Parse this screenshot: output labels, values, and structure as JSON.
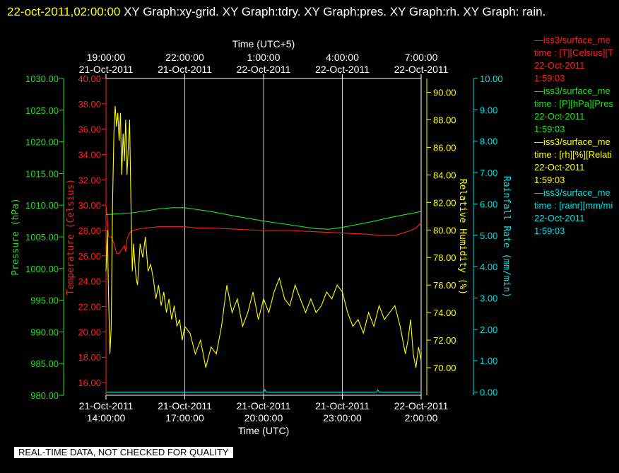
{
  "header": {
    "timestamp": "22-oct-2011,02:00:00",
    "title_rest": " XY Graph:xy-grid.  XY Graph:tdry.  XY Graph:pres.  XY Graph:rh.  XY Graph: rain."
  },
  "qc_banner": "REAL-TIME DATA, NOT CHECKED FOR QUALITY",
  "legend": [
    {
      "lines": [
        "—iss3/surface_me",
        "time : [T][Celsius][T",
        "22-Oct-2011",
        "1:59:03"
      ],
      "color": "#ff2020"
    },
    {
      "lines": [
        "—iss3/surface_me",
        "time : [P][hPa][Pres",
        "22-Oct-2011",
        "1:59:03"
      ],
      "color": "#20e020"
    },
    {
      "lines": [
        "—iss3/surface_me",
        "time : [rh][%][Relati",
        "22-Oct-2011",
        "1:59:03"
      ],
      "color": "#ffff00"
    },
    {
      "lines": [
        "—iss3/surface_me",
        "time : [rainr][mm/mi",
        "22-Oct-2011",
        "1:59:03"
      ],
      "color": "#00e0e0"
    }
  ],
  "chart_data": {
    "type": "line",
    "x_axis_bottom": {
      "label": "Time (UTC)",
      "ticks": [
        {
          "date": "21-Oct-2011",
          "time": "14:00:00",
          "hours": 0
        },
        {
          "date": "21-Oct-2011",
          "time": "17:00:00",
          "hours": 3
        },
        {
          "date": "21-Oct-2011",
          "time": "20:00:00",
          "hours": 6
        },
        {
          "date": "21-Oct-2011",
          "time": "23:00:00",
          "hours": 9
        },
        {
          "date": "22-Oct-2011",
          "time": "2:00:00",
          "hours": 12
        }
      ],
      "range_hours": [
        0,
        12
      ]
    },
    "x_axis_top": {
      "label": "Time (UTC+5)",
      "ticks": [
        {
          "time": "19:00:00",
          "date": "21-Oct-2011"
        },
        {
          "time": "22:00:00",
          "date": "21-Oct-2011"
        },
        {
          "time": "1:00:00",
          "date": "22-Oct-2011"
        },
        {
          "time": "4:00:00",
          "date": "22-Oct-2011"
        },
        {
          "time": "7:00:00",
          "date": "22-Oct-2011"
        }
      ]
    },
    "axes": {
      "pressure": {
        "label": "Pressure (hPa)",
        "color": "#20e020",
        "range": [
          980,
          1030
        ],
        "ticks": [
          "980.00",
          "985.00",
          "990.00",
          "995.00",
          "1000.00",
          "1005.00",
          "1010.00",
          "1015.00",
          "1020.00",
          "1025.00",
          "1030.00"
        ]
      },
      "temperature": {
        "label": "Temperature (Celsius)",
        "color": "#ff2020",
        "range": [
          15,
          40
        ],
        "ticks": [
          "16.00",
          "18.00",
          "20.00",
          "22.00",
          "24.00",
          "26.00",
          "28.00",
          "30.00",
          "32.00",
          "34.00",
          "36.00",
          "38.00",
          "40.00"
        ]
      },
      "rh": {
        "label": "Relative Humidity (%)",
        "color": "#ffff00",
        "range": [
          68,
          91
        ],
        "ticks": [
          "70.00",
          "72.00",
          "74.00",
          "76.00",
          "78.00",
          "80.00",
          "82.00",
          "84.00",
          "86.00",
          "88.00",
          "90.00"
        ]
      },
      "rain": {
        "label": "Rainfall Rate (mm/min)",
        "color": "#00e0e0",
        "range": [
          -0.1,
          10
        ],
        "ticks": [
          "0.00",
          "1.00",
          "2.00",
          "3.00",
          "4.00",
          "5.00",
          "6.00",
          "7.00",
          "8.00",
          "9.00",
          "10.00"
        ]
      }
    },
    "grid": "vertical",
    "series": [
      {
        "key": "temperature",
        "color": "#ff2020",
        "x": [
          0,
          0.05,
          0.1,
          0.2,
          0.3,
          0.4,
          0.5,
          0.6,
          0.7,
          0.75,
          0.8,
          0.9,
          1.0,
          1.2,
          1.5,
          2.0,
          2.5,
          3.0,
          3.5,
          4.0,
          5.0,
          6.0,
          7.0,
          8.0,
          9.0,
          10.0,
          10.5,
          11.0,
          11.3,
          11.6,
          11.8,
          12.0
        ],
        "y": [
          30.0,
          29.0,
          27.5,
          27.5,
          27.0,
          26.2,
          26.2,
          26.5,
          26.8,
          26.3,
          27.3,
          27.8,
          28.0,
          28.1,
          28.2,
          28.3,
          28.3,
          28.3,
          28.2,
          28.2,
          28.1,
          28.0,
          28.0,
          27.9,
          27.8,
          27.7,
          27.6,
          27.6,
          27.8,
          28.0,
          28.2,
          28.6
        ]
      },
      {
        "key": "pressure",
        "color": "#20e020",
        "x": [
          0,
          1,
          2,
          2.5,
          3,
          4,
          5,
          6,
          7,
          8,
          8.5,
          9,
          10,
          11,
          12
        ],
        "y": [
          1008.5,
          1008.8,
          1009.4,
          1009.6,
          1009.6,
          1009.0,
          1008.2,
          1007.5,
          1006.9,
          1006.3,
          1006.2,
          1006.5,
          1007.3,
          1008.2,
          1009.0
        ]
      },
      {
        "key": "rh",
        "color": "#ffff00",
        "x": [
          0,
          0.05,
          0.1,
          0.15,
          0.2,
          0.25,
          0.3,
          0.35,
          0.4,
          0.45,
          0.5,
          0.55,
          0.6,
          0.65,
          0.7,
          0.75,
          0.8,
          0.85,
          0.9,
          0.95,
          1.0,
          1.05,
          1.1,
          1.15,
          1.2,
          1.3,
          1.4,
          1.5,
          1.6,
          1.7,
          1.8,
          1.9,
          2.0,
          2.1,
          2.2,
          2.3,
          2.4,
          2.5,
          2.6,
          2.7,
          2.8,
          2.9,
          3.0,
          3.2,
          3.4,
          3.6,
          3.8,
          4.0,
          4.2,
          4.4,
          4.6,
          4.8,
          5.0,
          5.2,
          5.4,
          5.6,
          5.8,
          6.0,
          6.2,
          6.4,
          6.6,
          6.8,
          7.0,
          7.2,
          7.4,
          7.6,
          7.8,
          8.0,
          8.2,
          8.4,
          8.6,
          8.8,
          9.0,
          9.2,
          9.4,
          9.6,
          9.8,
          10.0,
          10.2,
          10.4,
          10.6,
          10.8,
          11.0,
          11.2,
          11.4,
          11.5,
          11.6,
          11.7,
          11.8,
          11.9,
          12.0
        ],
        "y": [
          77.0,
          80.0,
          75.0,
          71.0,
          73.0,
          82.0,
          87.0,
          89.0,
          87.5,
          88.5,
          86.5,
          88.5,
          84.0,
          87.0,
          85.0,
          88.0,
          84.0,
          86.0,
          88.0,
          82.0,
          77.0,
          79.0,
          77.5,
          76.5,
          76.0,
          79.0,
          78.0,
          79.5,
          77.0,
          77.5,
          76.5,
          75.0,
          76.0,
          74.5,
          75.5,
          74.0,
          75.0,
          73.5,
          74.5,
          73.0,
          73.5,
          72.0,
          73.0,
          72.5,
          71.0,
          72.0,
          70.0,
          71.5,
          71.0,
          73.0,
          76.0,
          74.0,
          75.0,
          73.0,
          74.0,
          75.5,
          73.5,
          75.0,
          74.0,
          75.5,
          76.5,
          75.0,
          74.5,
          76.0,
          75.0,
          74.0,
          75.0,
          74.0,
          74.5,
          75.5,
          75.0,
          76.0,
          75.5,
          74.0,
          73.0,
          73.5,
          72.5,
          74.0,
          73.0,
          74.5,
          73.5,
          74.0,
          74.5,
          73.0,
          71.0,
          72.0,
          73.5,
          71.0,
          70.0,
          71.5,
          70.5
        ]
      },
      {
        "key": "rain",
        "color": "#00e0e0",
        "x": [
          0,
          6.0,
          6.05,
          6.1,
          7.0,
          8.0,
          9.0,
          10.0,
          10.3,
          10.35,
          10.4,
          11.0,
          12.0
        ],
        "y": [
          0,
          0,
          0.08,
          0,
          0,
          0,
          0,
          0,
          0,
          0.07,
          0,
          0,
          0
        ]
      }
    ]
  }
}
